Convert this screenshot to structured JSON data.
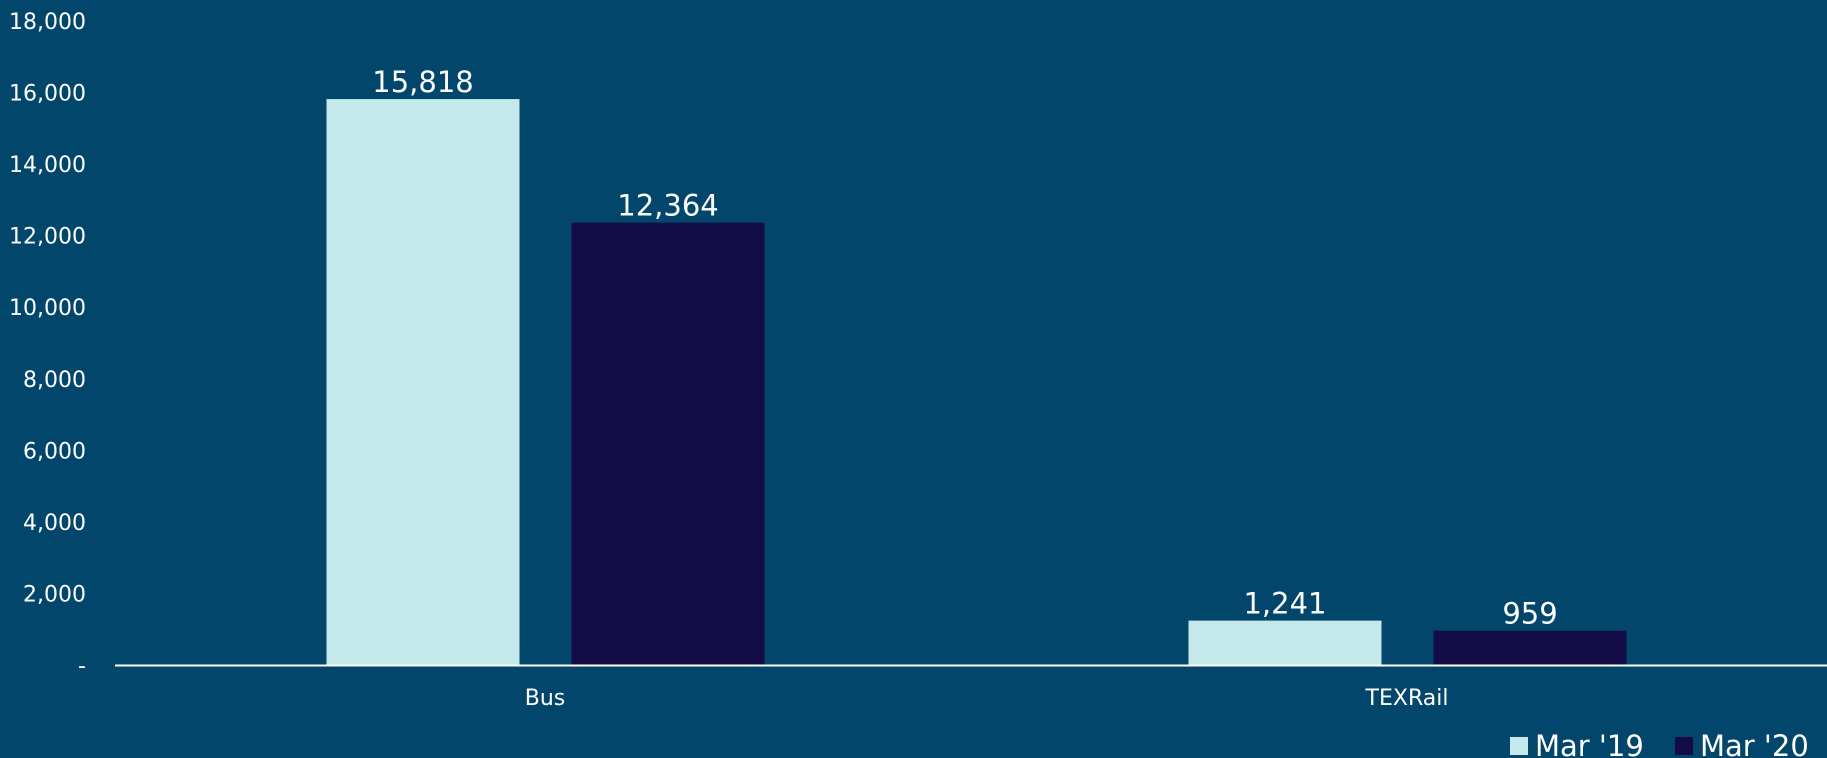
{
  "chart_data": {
    "type": "bar",
    "title": "",
    "xlabel": "",
    "ylabel": "",
    "categories": [
      "Bus",
      "TEXRail"
    ],
    "series": [
      {
        "name": "Mar '19",
        "values": [
          15818,
          1241
        ],
        "color": "#c5e8ea"
      },
      {
        "name": "Mar '20",
        "values": [
          12364,
          959
        ],
        "color": "#130c46"
      }
    ],
    "data_labels": [
      [
        "15,818",
        "1,241"
      ],
      [
        "12,364",
        "959"
      ]
    ],
    "ylim": [
      0,
      18000
    ],
    "yticks": [
      0,
      2000,
      4000,
      6000,
      8000,
      10000,
      12000,
      14000,
      16000,
      18000
    ],
    "ytick_labels": [
      "-",
      "2,000",
      "4,000",
      "6,000",
      "8,000",
      "10,000",
      "12,000",
      "14,000",
      "16,000",
      "18,000"
    ],
    "grid": false,
    "legend_position": "bottom-right",
    "background": "#03466b",
    "axis_color": "#ffffff",
    "text_color": "#ffffff"
  }
}
